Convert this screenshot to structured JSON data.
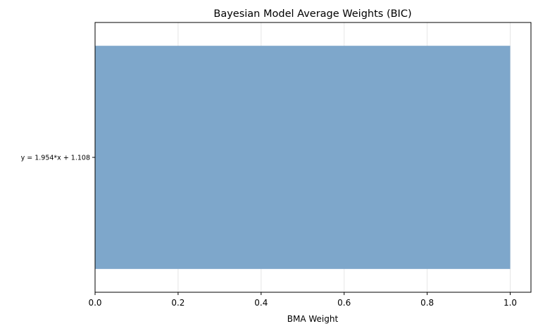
{
  "chart_data": {
    "type": "bar",
    "orientation": "horizontal",
    "title": "Bayesian Model Average Weights (BIC)",
    "xlabel": "BMA Weight",
    "ylabel": "",
    "categories": [
      "y = 1.954*x + 1.108"
    ],
    "values": [
      1.0
    ],
    "xlim": [
      0.0,
      1.05
    ],
    "x_ticks": [
      0.0,
      0.2,
      0.4,
      0.6,
      0.8,
      1.0
    ],
    "x_tick_labels": [
      "0.0",
      "0.2",
      "0.4",
      "0.6",
      "0.8",
      "1.0"
    ],
    "grid": "x-axis",
    "legend": "none",
    "colors": {
      "bar": "#7ea7cb",
      "grid": "#e6e6e6",
      "axis": "#000000"
    }
  }
}
